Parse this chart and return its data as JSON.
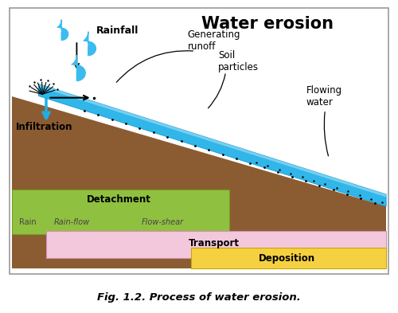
{
  "title": "Water erosion",
  "caption": "Fig. 1.2. Process of water erosion.",
  "background_color": "#ffffff",
  "soil_color": "#8B5C32",
  "water_color": "#1EB0E8",
  "water_edge": "#0090CC",
  "detachment_color": "#90C040",
  "detachment_edge": "#70A020",
  "transport_color": "#F4C8DC",
  "transport_edge": "#D090B0",
  "deposition_color": "#F5D040",
  "deposition_edge": "#C8A800",
  "border_color": "#999999",
  "labels": {
    "rainfall": "Rainfall",
    "generating_runoff": "Generating\nrunoff",
    "soil_particles": "Soil\nparticles",
    "flowing_water": "Flowing\nwater",
    "infiltration": "Infiltration",
    "detachment": "Detachment",
    "rain": "Rain",
    "rain_flow": "Rain-flow",
    "flow_shear": "Flow-shear",
    "transport": "Transport",
    "deposition": "Deposition"
  }
}
